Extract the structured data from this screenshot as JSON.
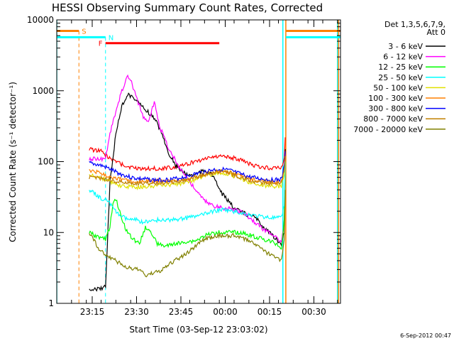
{
  "chart_data": {
    "type": "line",
    "title": "HESSI Observing Summary Count Rates, Corrected",
    "xlabel": "Start Time (03-Sep-12 23:03:02)",
    "ylabel": "Corrected Count Rate (s⁻¹ detector⁻¹)",
    "xunit": "minutes after 03-Sep-12 23:03:02",
    "xlim": [
      0,
      96
    ],
    "ylim": [
      1,
      10000
    ],
    "ylog": true,
    "x_tick_labels": [
      "23:15",
      "23:30",
      "23:45",
      "00:00",
      "00:15",
      "00:30"
    ],
    "x_tick_positions": [
      12,
      27,
      42,
      57,
      72,
      87
    ],
    "y_tick_labels": [
      "1",
      "10",
      "100",
      "1000",
      "10000"
    ],
    "y_tick_values": [
      1,
      10,
      100,
      1000,
      10000
    ],
    "legend_header": [
      "Det 1,3,5,6,7,9,",
      "Att 0"
    ],
    "legend_position": "right, outside plot",
    "timestamp": "6-Sep-2012 00:47",
    "flags": [
      {
        "label": "S",
        "color": "#ff8000",
        "y": 7000,
        "segments": [
          [
            0,
            7.5
          ],
          [
            77.5,
            96
          ]
        ],
        "vline": 7.5
      },
      {
        "label": "N",
        "color": "#00ffff",
        "y": 5700,
        "segments": [
          [
            0,
            16.5
          ],
          [
            77.5,
            96
          ]
        ],
        "vline": 16.5
      },
      {
        "label": "F",
        "color": "#ff0000",
        "y": 4700,
        "segments": [
          [
            16.5,
            55
          ]
        ],
        "vline": null
      }
    ],
    "extra_vlines": [
      {
        "x": 0,
        "color": "#00ffff"
      },
      {
        "x": 76.5,
        "color": "#00ffff"
      },
      {
        "x": 77.5,
        "color": "#ff8000"
      },
      {
        "x": 95,
        "color": "#00ffff"
      },
      {
        "x": 95.3,
        "color": "#ff8000"
      }
    ],
    "series": [
      {
        "name": "3 - 6 keV",
        "color": "#000000",
        "x": [
          11,
          12,
          15,
          16.5,
          18,
          20,
          22,
          24,
          26,
          28,
          30,
          32,
          34,
          36,
          38,
          40,
          42,
          44,
          46,
          48,
          50,
          52,
          54,
          56,
          58,
          60,
          62,
          64,
          66,
          68,
          70,
          72,
          74,
          76,
          77,
          77.3
        ],
        "y": [
          1.5,
          1.6,
          1.6,
          1.8,
          50,
          250,
          600,
          900,
          800,
          650,
          550,
          450,
          350,
          220,
          130,
          90,
          75,
          65,
          65,
          70,
          75,
          70,
          50,
          35,
          28,
          22,
          20,
          18,
          17,
          15,
          12,
          10,
          8,
          7,
          10,
          150
        ]
      },
      {
        "name": "6 - 12 keV",
        "color": "#ff00ff",
        "x": [
          11,
          13,
          15,
          16.5,
          18,
          20,
          22,
          24,
          25,
          27,
          29,
          31,
          33,
          35,
          38,
          41,
          44,
          46,
          48,
          50,
          52,
          54,
          56,
          58,
          60,
          62,
          64,
          66,
          68,
          70,
          72,
          74,
          76,
          77,
          77.3
        ],
        "y": [
          110,
          110,
          110,
          110,
          250,
          500,
          1000,
          1600,
          1400,
          800,
          450,
          350,
          700,
          300,
          150,
          90,
          60,
          45,
          35,
          28,
          25,
          23,
          22,
          22,
          21,
          20,
          18,
          15,
          13,
          11,
          10,
          9,
          7,
          15,
          130
        ]
      },
      {
        "name": "12 - 25 keV",
        "color": "#00ff00",
        "x": [
          11,
          13,
          15,
          16.5,
          18,
          19,
          20,
          21,
          22,
          24,
          26,
          28,
          29,
          30,
          32,
          34,
          36,
          38,
          40,
          42,
          44,
          46,
          48,
          50,
          52,
          54,
          56,
          58,
          60,
          62,
          64,
          66,
          68,
          70,
          72,
          74,
          76,
          77,
          77.3
        ],
        "y": [
          10,
          9,
          8.5,
          8,
          12,
          25,
          30,
          22,
          15,
          10,
          8,
          7,
          9,
          12,
          10,
          7,
          6.5,
          6.5,
          7,
          7,
          7.5,
          7.5,
          8,
          9,
          9.5,
          10,
          10,
          10,
          10,
          10,
          9.5,
          9,
          8.5,
          8,
          7.5,
          7,
          6,
          15,
          100
        ]
      },
      {
        "name": "25 - 50 keV",
        "color": "#00ffff",
        "x": [
          11,
          13,
          15,
          16.5,
          17.5,
          19,
          21,
          23,
          25,
          27,
          29,
          31,
          33,
          35,
          38,
          41,
          44,
          47,
          50,
          53,
          56,
          59,
          62,
          65,
          68,
          71,
          74,
          76,
          77,
          77.3
        ],
        "y": [
          40,
          35,
          30,
          30,
          28,
          22,
          18,
          16,
          15,
          15,
          14,
          14,
          15,
          15,
          15,
          15.5,
          16,
          17,
          18,
          20,
          21,
          20,
          19,
          18,
          17,
          16.5,
          16,
          16,
          25,
          100
        ]
      },
      {
        "name": "50 - 100 keV",
        "color": "#e0e000",
        "x": [
          11,
          13,
          15,
          17,
          19,
          21,
          23,
          25,
          27,
          29,
          31,
          33,
          35,
          38,
          41,
          44,
          47,
          50,
          53,
          56,
          59,
          62,
          65,
          68,
          71,
          74,
          76,
          77,
          77.3
        ],
        "y": [
          65,
          62,
          58,
          55,
          50,
          46,
          45,
          44,
          44,
          44,
          45,
          45,
          46,
          47,
          48,
          52,
          56,
          62,
          68,
          70,
          65,
          58,
          52,
          48,
          46,
          45,
          45,
          70,
          120
        ]
      },
      {
        "name": "100 - 300 keV",
        "color": "#ff8000",
        "x": [
          11,
          13,
          15,
          17,
          19,
          21,
          23,
          25,
          27,
          29,
          31,
          33,
          35,
          38,
          41,
          44,
          47,
          50,
          53,
          56,
          59,
          62,
          65,
          68,
          71,
          74,
          76,
          77,
          77.3
        ],
        "y": [
          75,
          72,
          68,
          64,
          60,
          57,
          55,
          54,
          53,
          53,
          53,
          53,
          53,
          53,
          54,
          56,
          60,
          66,
          72,
          74,
          70,
          64,
          58,
          54,
          52,
          51,
          52,
          80,
          130
        ]
      },
      {
        "name": "300 - 800 keV",
        "color": "#0000ff",
        "x": [
          11,
          13,
          15,
          17,
          19,
          21,
          23,
          25,
          27,
          29,
          31,
          33,
          35,
          38,
          41,
          44,
          47,
          50,
          53,
          56,
          59,
          62,
          65,
          68,
          71,
          74,
          76,
          77,
          77.3
        ],
        "y": [
          95,
          92,
          88,
          82,
          75,
          68,
          64,
          60,
          58,
          57,
          56,
          55,
          55,
          56,
          58,
          62,
          67,
          72,
          77,
          78,
          74,
          67,
          61,
          58,
          56,
          55,
          56,
          85,
          140
        ]
      },
      {
        "name": "800 - 7000 keV",
        "color": "#c08000",
        "x": [
          11,
          13,
          15,
          17,
          19,
          21,
          23,
          25,
          27,
          29,
          31,
          33,
          35,
          38,
          41,
          44,
          47,
          50,
          53,
          56,
          59,
          62,
          65,
          68,
          71,
          74,
          76,
          77,
          77.3
        ],
        "y": [
          60,
          60,
          58,
          57,
          54,
          52,
          50,
          50,
          50,
          50,
          50,
          50,
          50,
          51,
          52,
          55,
          60,
          65,
          70,
          72,
          68,
          60,
          55,
          51,
          50,
          49,
          50,
          75,
          120
        ]
      },
      {
        "name": "7000 - 20000 keV",
        "color": "#808000",
        "x": [
          11,
          12.5,
          14,
          16,
          18,
          20,
          22,
          24,
          26,
          28,
          30,
          32,
          34,
          36,
          38,
          40,
          42,
          44,
          46,
          48,
          50,
          52,
          54,
          56,
          58,
          60,
          62,
          64,
          66,
          68,
          70,
          72,
          74,
          76,
          77,
          77.3
        ],
        "y": [
          10,
          8,
          6,
          5,
          4.5,
          4,
          3.5,
          3.2,
          3,
          3,
          2.5,
          2.6,
          2.8,
          3,
          3.5,
          4,
          4.5,
          5,
          6,
          7,
          8,
          8.5,
          9,
          9,
          9,
          9,
          8.5,
          8,
          7.5,
          6.5,
          5.5,
          5,
          4.5,
          4,
          8,
          40
        ]
      }
    ],
    "red_envelope": {
      "name": "red-upper-curve",
      "color": "#ff0000",
      "x": [
        11,
        13,
        15,
        17,
        19,
        21,
        23,
        25,
        27,
        29,
        31,
        33,
        35,
        38,
        41,
        44,
        47,
        50,
        53,
        56,
        59,
        62,
        65,
        68,
        71,
        74,
        76,
        77,
        77.3
      ],
      "y": [
        150,
        145,
        140,
        120,
        105,
        95,
        88,
        82,
        80,
        80,
        80,
        80,
        80,
        82,
        86,
        92,
        100,
        110,
        118,
        120,
        115,
        105,
        95,
        85,
        82,
        80,
        82,
        110,
        220
      ]
    }
  }
}
